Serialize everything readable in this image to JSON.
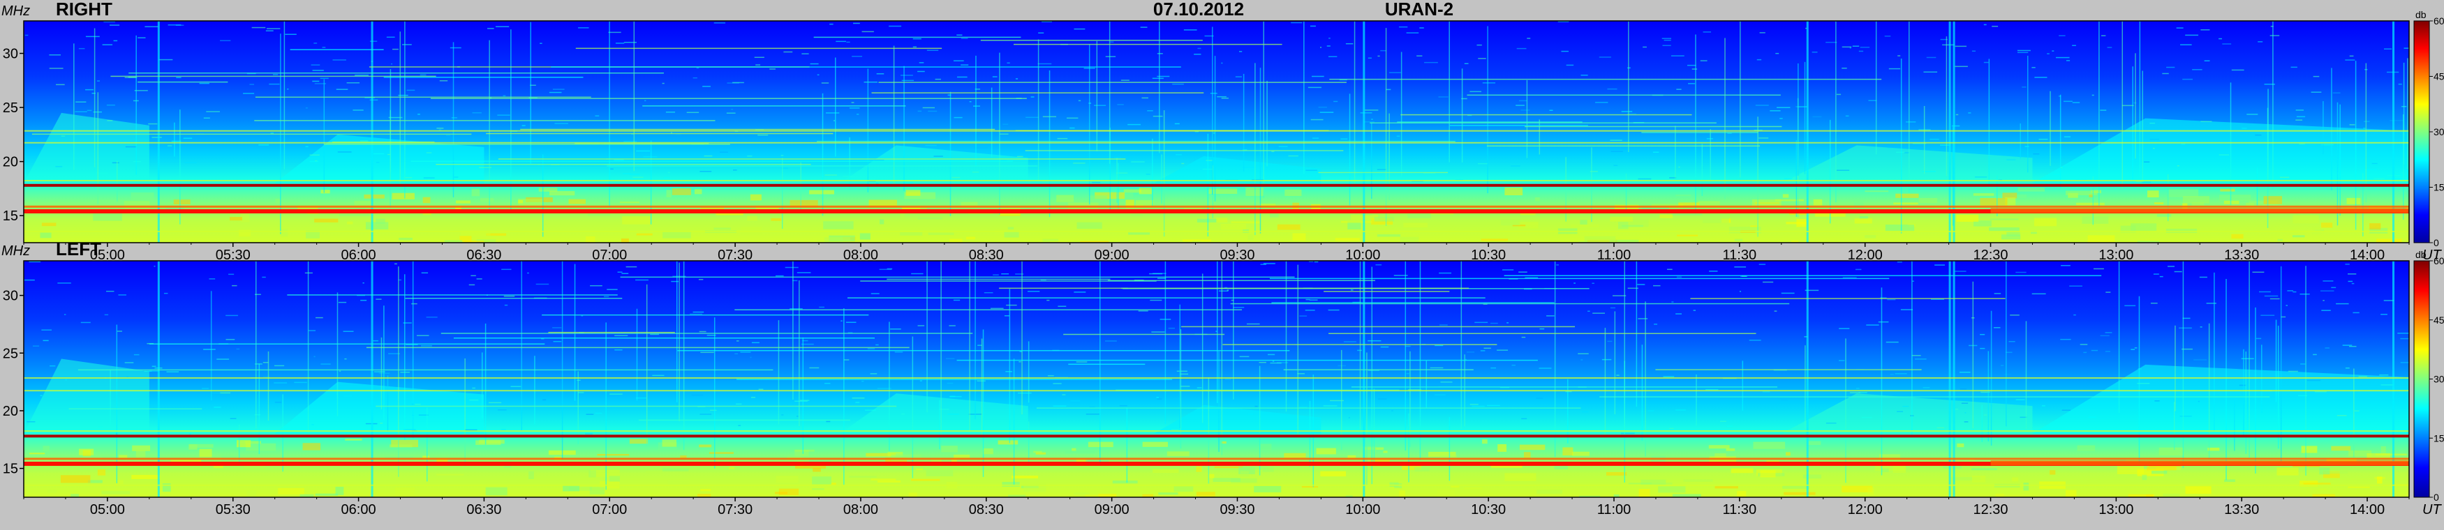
{
  "date": "07.10.2012",
  "instrument": "URAN-2",
  "x_unit": "UT",
  "y_unit": "MHz",
  "colorbar_unit": "db",
  "chart_data": [
    {
      "type": "heatmap",
      "title": "RIGHT",
      "xlabel": "UT",
      "ylabel": "MHz",
      "x_ticks": [
        "05:00",
        "05:30",
        "06:00",
        "06:30",
        "07:00",
        "07:30",
        "08:00",
        "08:30",
        "09:00",
        "09:30",
        "10:00",
        "10:30",
        "11:00",
        "11:30",
        "12:00",
        "12:30",
        "13:00",
        "13:30",
        "14:00"
      ],
      "x_range": [
        "04:40",
        "14:10"
      ],
      "y_ticks": [
        15,
        20,
        25,
        30
      ],
      "ylim": [
        12.5,
        33
      ],
      "colorbar": {
        "ticks": [
          0,
          15,
          30,
          45,
          60
        ],
        "label": "db",
        "range": [
          0,
          60
        ]
      },
      "colormap": [
        "#0000a0",
        "#0000ff",
        "#0080ff",
        "#00ffff",
        "#80ff80",
        "#ffff00",
        "#ff8000",
        "#ff0000",
        "#800000"
      ],
      "features": {
        "strong_bands_mhz": [
          15.4,
          15.8,
          17.8
        ],
        "note_bands_mhz": [
          13.6,
          18.3,
          21.8,
          22.9
        ]
      }
    },
    {
      "type": "heatmap",
      "title": "LEFT",
      "xlabel": "UT",
      "ylabel": "MHz",
      "x_ticks": [
        "05:00",
        "05:30",
        "06:00",
        "06:30",
        "07:00",
        "07:30",
        "08:00",
        "08:30",
        "09:00",
        "09:30",
        "10:00",
        "10:30",
        "11:00",
        "11:30",
        "12:00",
        "12:30",
        "13:00",
        "13:30",
        "14:00"
      ],
      "x_range": [
        "04:40",
        "14:10"
      ],
      "y_ticks": [
        15,
        20,
        25,
        30
      ],
      "ylim": [
        12.5,
        33
      ],
      "colorbar": {
        "ticks": [
          0,
          15,
          30,
          45,
          60
        ],
        "label": "db",
        "range": [
          0,
          60
        ]
      },
      "colormap": [
        "#0000a0",
        "#0000ff",
        "#0080ff",
        "#00ffff",
        "#80ff80",
        "#ffff00",
        "#ff8000",
        "#ff0000",
        "#800000"
      ],
      "features": {
        "strong_bands_mhz": [
          15.4,
          15.8,
          17.8
        ],
        "note_bands_mhz": [
          13.6,
          18.3,
          21.8,
          22.9
        ]
      }
    }
  ]
}
